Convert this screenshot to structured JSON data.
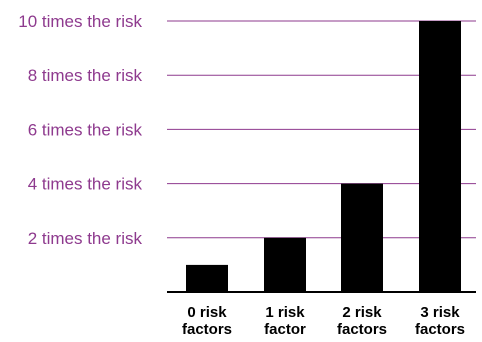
{
  "chart_data": {
    "type": "bar",
    "categories": [
      [
        "0 risk",
        "factors"
      ],
      [
        "1 risk",
        "factor"
      ],
      [
        "2 risk",
        "factors"
      ],
      [
        "3 risk",
        "factors"
      ]
    ],
    "values": [
      1,
      2,
      4,
      10
    ],
    "ylim": [
      0,
      10
    ],
    "yticks": [
      {
        "value": 2,
        "label": "2 times the risk"
      },
      {
        "value": 4,
        "label": "4 times the risk"
      },
      {
        "value": 6,
        "label": "6 times the risk"
      },
      {
        "value": 8,
        "label": "8 times the risk"
      },
      {
        "value": 10,
        "label": "10 times the risk"
      }
    ],
    "title": "",
    "xlabel": "",
    "ylabel": "",
    "grid": true,
    "legend": false,
    "colors": {
      "bars": "#000000",
      "gridlines": "#8e3a8e",
      "tick_labels": "#8e3a8e",
      "category_labels": "#000000",
      "baseline": "#000000"
    }
  }
}
